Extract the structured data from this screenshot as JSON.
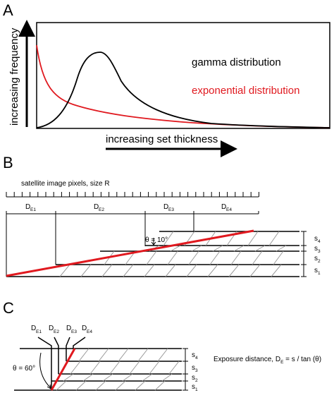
{
  "panel_a": {
    "letter": "A",
    "y_axis_label": "increasing frequency",
    "x_axis_label": "increasing set thickness",
    "curves": [
      {
        "name": "gamma distribution",
        "color": "#000000"
      },
      {
        "name": "exponential distribution",
        "color": "#e0191f"
      }
    ]
  },
  "panel_b": {
    "letter": "B",
    "pixels_label": "satellite image pixels, size R",
    "exposure_labels": [
      {
        "main": "D",
        "sub": "E1"
      },
      {
        "main": "D",
        "sub": "E2"
      },
      {
        "main": "D",
        "sub": "E3"
      },
      {
        "main": "D",
        "sub": "E4"
      }
    ],
    "angle_label": "θ = 10°",
    "set_labels": [
      {
        "main": "s",
        "sub": "4"
      },
      {
        "main": "s",
        "sub": "3"
      },
      {
        "main": "s",
        "sub": "2"
      },
      {
        "main": "s",
        "sub": "1"
      }
    ]
  },
  "panel_c": {
    "letter": "C",
    "exposure_labels": [
      {
        "main": "D",
        "sub": "E1"
      },
      {
        "main": "D",
        "sub": "E2"
      },
      {
        "main": "D",
        "sub": "E3"
      },
      {
        "main": "D",
        "sub": "E4"
      }
    ],
    "angle_label": "θ = 60°",
    "set_labels": [
      {
        "main": "s",
        "sub": "4"
      },
      {
        "main": "s",
        "sub": "3"
      },
      {
        "main": "s",
        "sub": "2"
      },
      {
        "main": "s",
        "sub": "1"
      }
    ],
    "formula_label": "Exposure distance, D",
    "formula_sub": "E",
    "formula_rest": " = s / tan (θ)"
  },
  "colors": {
    "surface": "#e0191f",
    "ink": "#000000",
    "hatch": "#9a9a9a"
  }
}
